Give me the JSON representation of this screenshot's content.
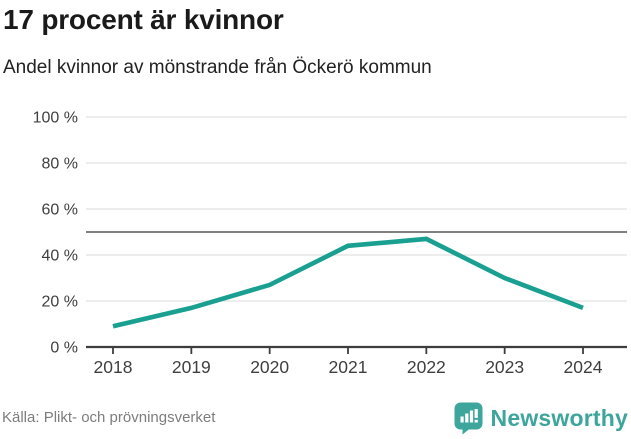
{
  "header": {
    "title": "17 procent är kvinnor",
    "subtitle": "Andel kvinnor av mönstrande från Öckerö kommun"
  },
  "chart_data": {
    "type": "line",
    "categories": [
      "2018",
      "2019",
      "2020",
      "2021",
      "2022",
      "2023",
      "2024"
    ],
    "series": [
      {
        "name": "Andel kvinnor",
        "values": [
          9,
          17,
          27,
          44,
          47,
          30,
          17
        ]
      }
    ],
    "title": "17 procent är kvinnor",
    "subtitle": "Andel kvinnor av mönstrande från Öckerö kommun",
    "xlabel": "",
    "ylabel": "",
    "ylim": [
      0,
      100
    ],
    "yticks": [
      0,
      20,
      40,
      60,
      80,
      100
    ],
    "ytick_suffix": " %",
    "reference_line": 50,
    "grid": true,
    "legend_position": "none",
    "colors": {
      "line": "#1aa091",
      "gridline": "#e2e2e2",
      "reference_line": "#6e6e6e",
      "axis": "#3d3d3d",
      "tick_label": "#3f3f3f"
    }
  },
  "footer": {
    "source": "Källa: Plikt- och prövningsverket",
    "brand": "Newsworthy"
  },
  "icons": {
    "brand_icon": "newsworthy-speech-bubble-bar-chart",
    "brand_color": "#3da59c"
  }
}
